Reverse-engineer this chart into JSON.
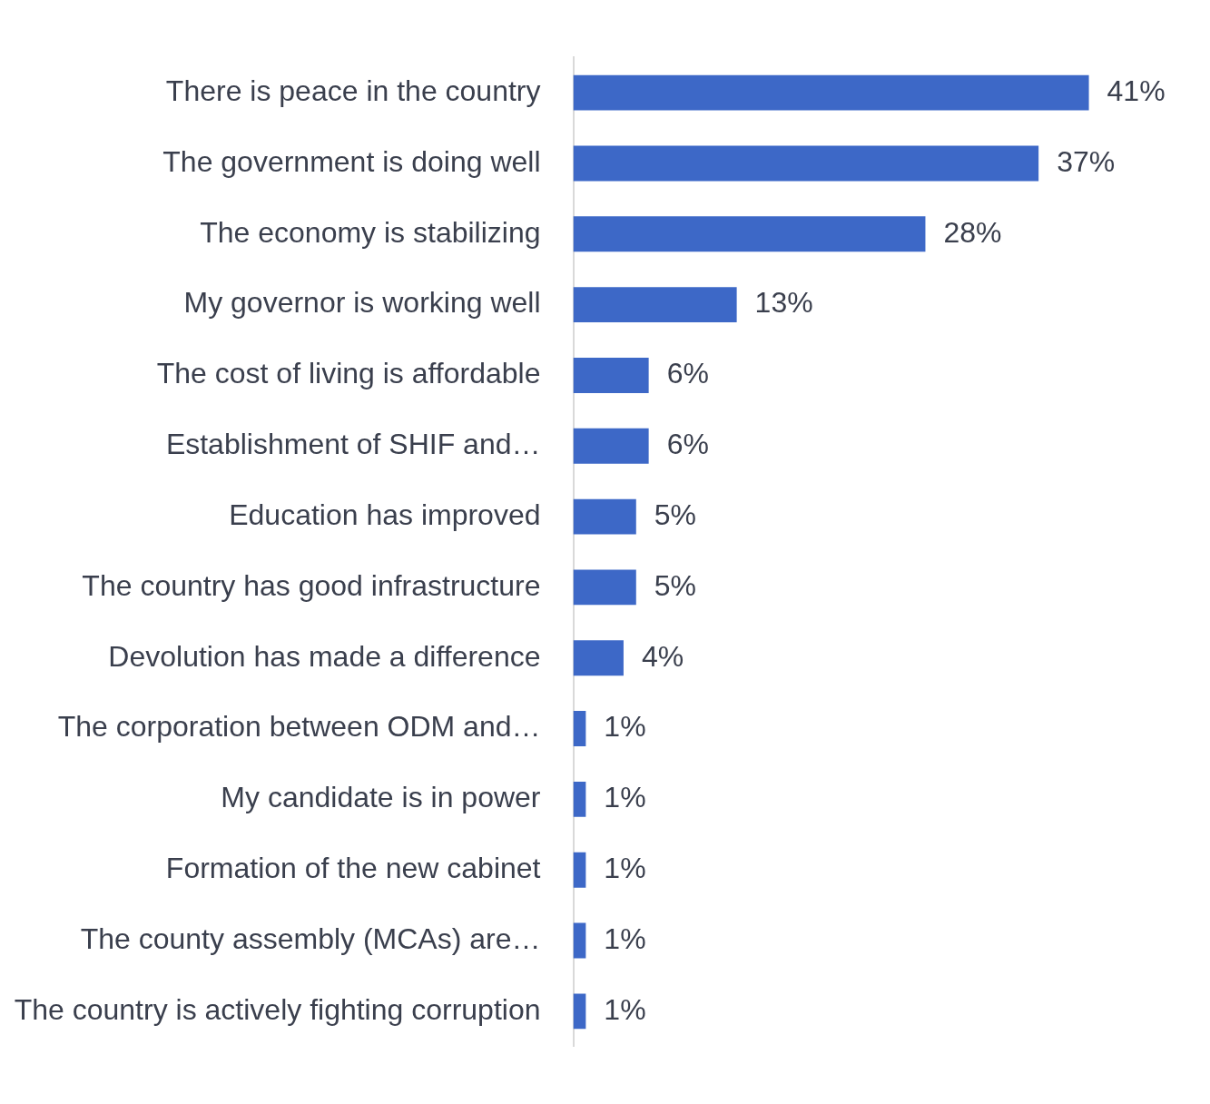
{
  "chart_data": {
    "type": "bar",
    "orientation": "horizontal",
    "color": "#3d68c7",
    "categories": [
      "There is peace in the country",
      "The government is doing well",
      "The economy is stabilizing",
      "My governor is working well",
      "The cost of living is affordable",
      "Establishment of SHIF and…",
      "Education has improved",
      "The country has good infrastructure",
      "Devolution has made a difference",
      "The corporation between ODM and…",
      "My candidate is in power",
      "Formation of the new cabinet",
      "The county assembly (MCAs) are…",
      "The country is actively fighting corruption"
    ],
    "values": [
      41,
      37,
      28,
      13,
      6,
      6,
      5,
      5,
      4,
      1,
      1,
      1,
      1,
      1
    ],
    "value_labels": [
      "41%",
      "37%",
      "28%",
      "13%",
      "6%",
      "6%",
      "5%",
      "5%",
      "4%",
      "1%",
      "1%",
      "1%",
      "1%",
      "1%"
    ],
    "tick_labels": "y"
  }
}
